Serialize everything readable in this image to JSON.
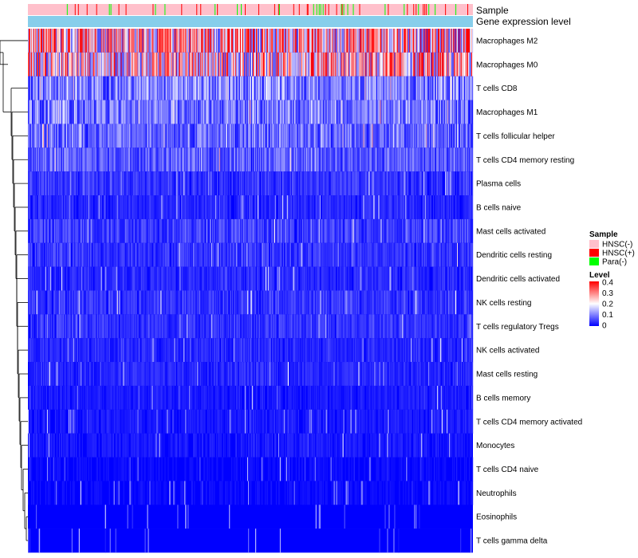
{
  "chart_data": {
    "type": "heatmap",
    "row_labels": [
      "Macrophages M2",
      "Macrophages M0",
      "T cells CD8",
      "Macrophages M1",
      "T cells follicular helper",
      "T cells CD4 memory resting",
      "Plasma cells",
      "B cells naive",
      "Mast cells activated",
      "Dendritic cells resting",
      "Dendritic cells activated",
      "NK cells resting",
      "T cells regulatory  Tregs",
      "NK cells activated",
      "Mast cells resting",
      "B cells memory",
      "T cells CD4 memory activated",
      "Monocytes",
      "T cells CD4 naive",
      "Neutrophils",
      "Eosinophils",
      "T cells gamma delta"
    ],
    "row_mean_levels": [
      0.26,
      0.22,
      0.1,
      0.09,
      0.08,
      0.07,
      0.04,
      0.03,
      0.05,
      0.04,
      0.03,
      0.04,
      0.04,
      0.03,
      0.03,
      0.02,
      0.02,
      0.02,
      0.01,
      0.01,
      0.005,
      0.003
    ],
    "sample_count": 560,
    "annotation_sample_label": "Sample",
    "annotation_level_label": "Gene expression level",
    "legend_sample": {
      "title": "Sample",
      "items": [
        {
          "label": "HNSC(-)",
          "color": "#FFC0CB"
        },
        {
          "label": "HNSC(+)",
          "color": "#FF0000"
        },
        {
          "label": "Para(-)",
          "color": "#00FF00"
        }
      ]
    },
    "legend_level": {
      "title": "Level",
      "ticks": [
        "0.4",
        "0.3",
        "0.2",
        "0.1",
        "0"
      ],
      "range": [
        0,
        0.4
      ],
      "colors": [
        "#0000FF",
        "#FFFFFF",
        "#FF0000"
      ]
    },
    "level_bar_color": "#87CEEB"
  }
}
